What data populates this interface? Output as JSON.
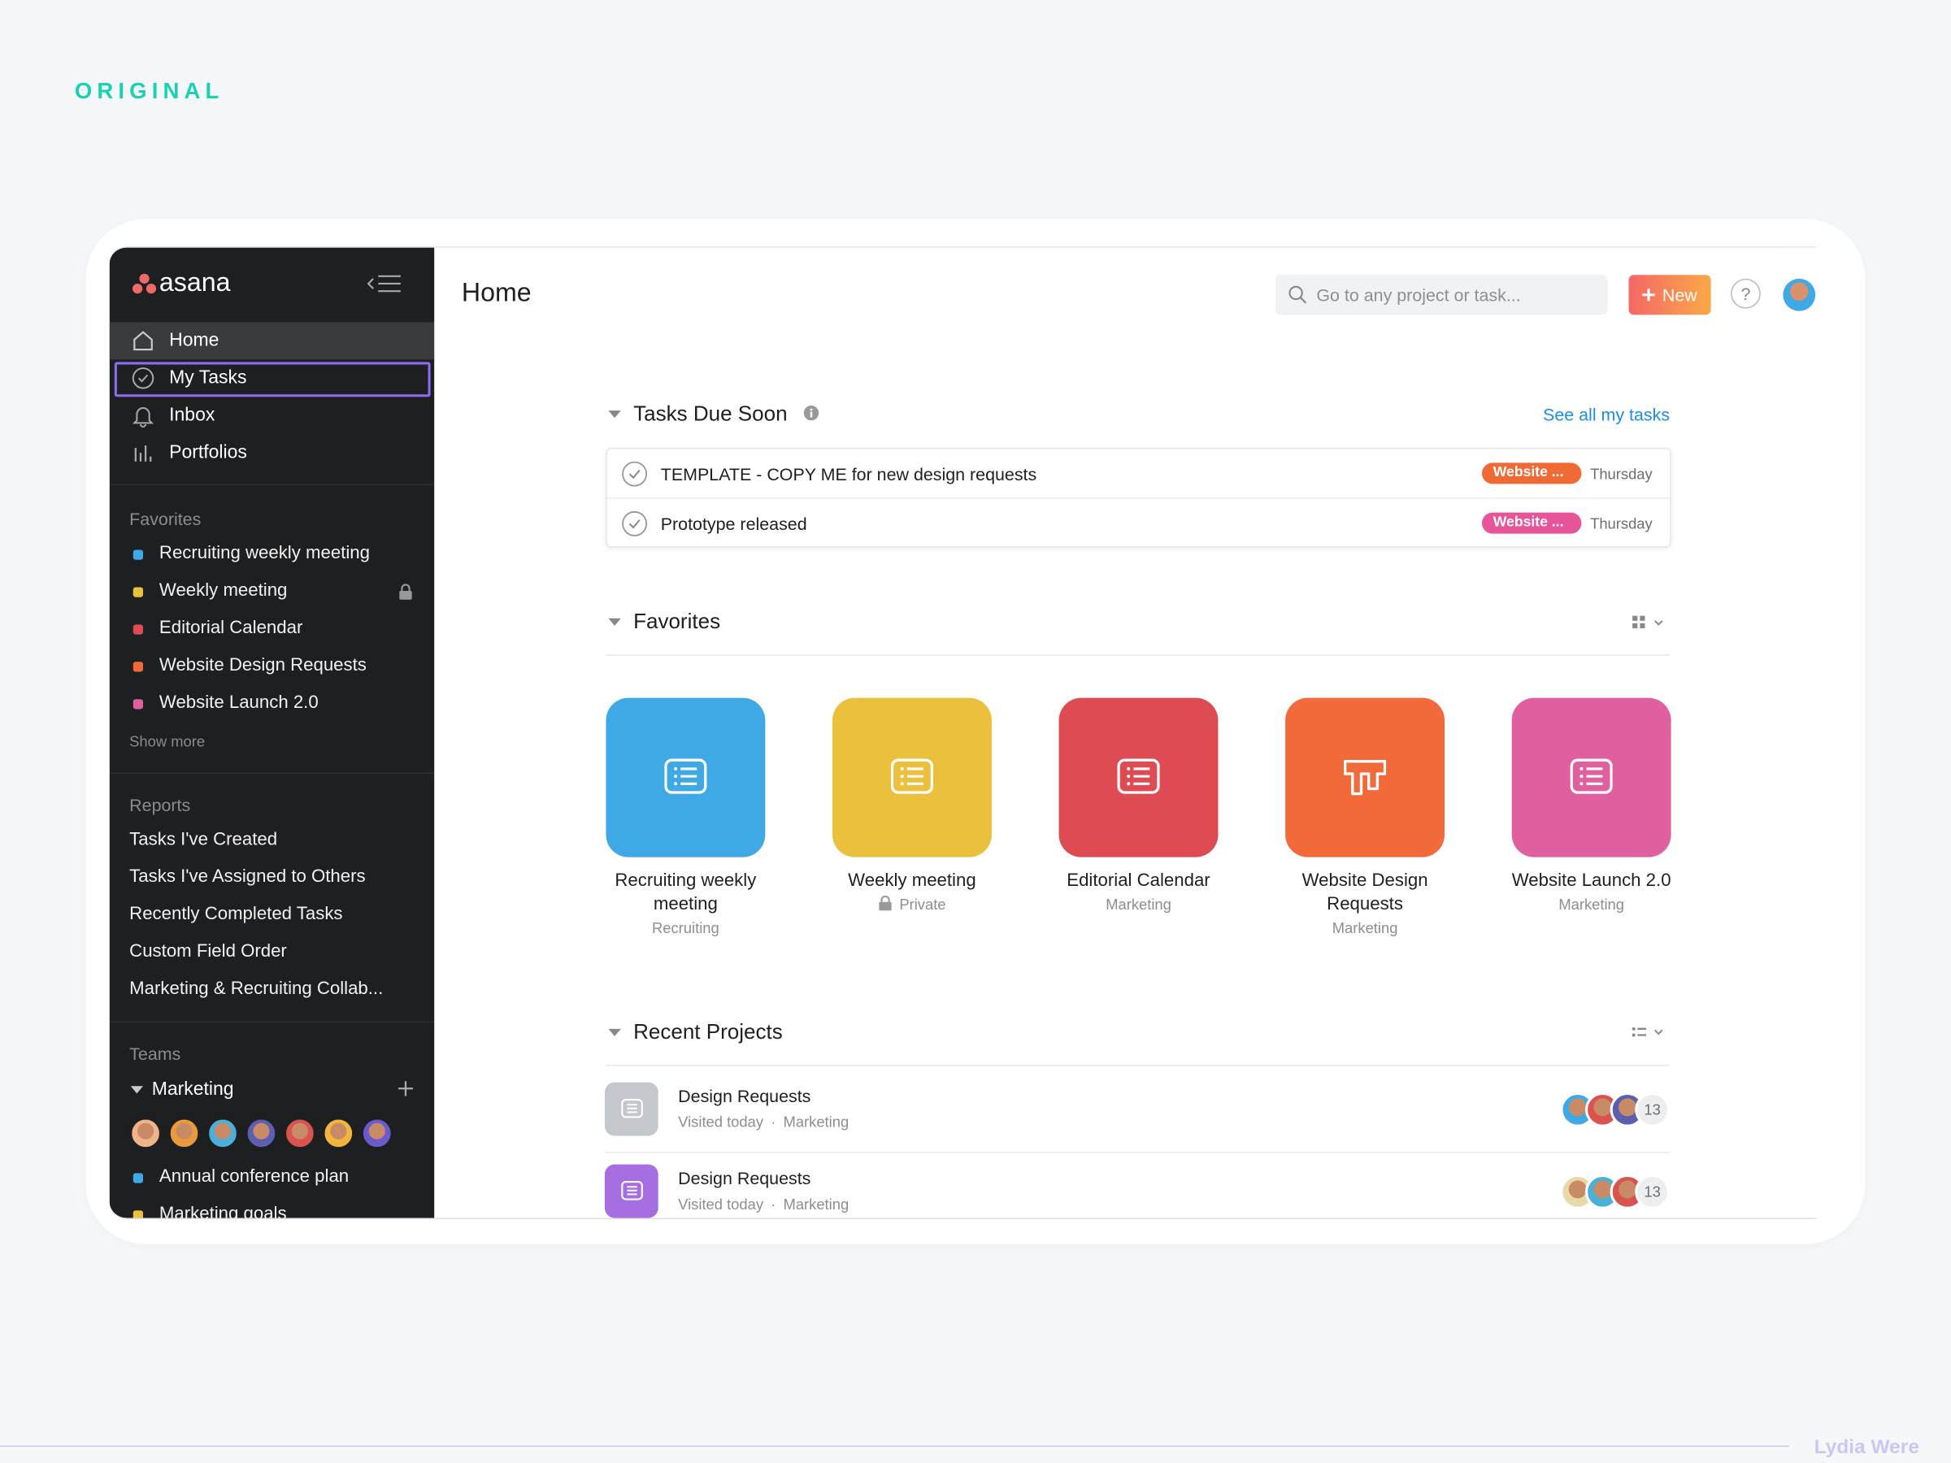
{
  "label": "ORIGINAL",
  "credit": "Lydia Were",
  "sidebar": {
    "logo": "asana",
    "nav": [
      "Home",
      "My Tasks",
      "Inbox",
      "Portfolios"
    ],
    "favorites": {
      "title": "Favorites",
      "items": [
        "Recruiting weekly meeting",
        "Weekly meeting",
        "Editorial Calendar",
        "Website Design Requests",
        "Website Launch 2.0"
      ],
      "show_more": "Show more"
    },
    "reports": {
      "title": "Reports",
      "items": [
        "Tasks I've Created",
        "Tasks I've Assigned to Others",
        "Recently Completed Tasks",
        "Custom Field Order",
        "Marketing & Recruiting Collab..."
      ]
    },
    "teams": {
      "title": "Teams",
      "team": "Marketing",
      "projects": [
        "Annual conference plan",
        "Marketing goals"
      ]
    }
  },
  "header": {
    "title": "Home",
    "search_placeholder": "Go to any project or task...",
    "new_button": "New",
    "help": "?"
  },
  "tasks_due_soon": {
    "title": "Tasks Due Soon",
    "link": "See all my tasks",
    "tasks": [
      {
        "name": "TEMPLATE - COPY ME for new design requests",
        "tag": "Website ...",
        "due": "Thursday"
      },
      {
        "name": "Prototype released",
        "tag": "Website ...",
        "due": "Thursday"
      }
    ]
  },
  "favorites": {
    "title": "Favorites",
    "projects": [
      {
        "name": "Recruiting weekly meeting",
        "team": "Recruiting"
      },
      {
        "name": "Weekly meeting",
        "team": "Private"
      },
      {
        "name": "Editorial Calendar",
        "team": "Marketing"
      },
      {
        "name": "Website Design Requests",
        "team": "Marketing"
      },
      {
        "name": "Website Launch 2.0",
        "team": "Marketing"
      }
    ]
  },
  "recent_projects": {
    "title": "Recent Projects",
    "projects": [
      {
        "name": "Design Requests",
        "visited": "Visited today",
        "team": "Marketing",
        "members": 13
      },
      {
        "name": "Design Requests",
        "visited": "Visited today",
        "team": "Marketing",
        "members": 13
      }
    ]
  }
}
